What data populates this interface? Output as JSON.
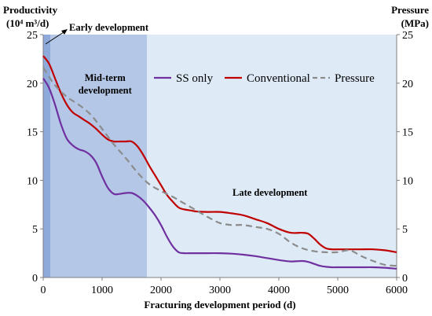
{
  "chart_data": {
    "type": "line",
    "ylabel_left": [
      "Productivity",
      "(10⁴ m³/d)"
    ],
    "ylabel_right": [
      "Pressure",
      "(MPa)"
    ],
    "xlabel": "Fracturing development period (d)",
    "xlim": [
      0,
      6000
    ],
    "ylim": [
      0,
      25
    ],
    "x_ticks": [
      0,
      1000,
      2000,
      3000,
      4000,
      5000,
      6000
    ],
    "y_ticks": [
      0,
      5,
      10,
      15,
      20,
      25
    ],
    "grid": false,
    "legend_position": "top-right",
    "colors": {
      "ss_only": "#7030a0",
      "conventional": "#c00000",
      "pressure": "#8c8c8c",
      "early_band": "#8eaadb",
      "mid_band": "#b4c7e7",
      "late_band": "#deebf7"
    },
    "phases": [
      {
        "label": "Early development",
        "start": 0,
        "end": 120
      },
      {
        "label": "Mid-term development",
        "start": 120,
        "end": 1760
      },
      {
        "label": "Late development",
        "start": 1760,
        "end": 6000
      }
    ],
    "series": [
      {
        "name": "SS only",
        "style": "solid",
        "x": [
          0,
          100,
          200,
          300,
          400,
          500,
          600,
          700,
          800,
          900,
          1000,
          1100,
          1200,
          1300,
          1400,
          1500,
          1600,
          1700,
          1800,
          1900,
          2000,
          2100,
          2200,
          2300,
          2400,
          2500,
          2600,
          2800,
          3000,
          3200,
          3400,
          3600,
          3800,
          4000,
          4200,
          4400,
          4500,
          4600,
          4700,
          4800,
          4900,
          5000,
          5200,
          5400,
          5600,
          5800,
          6000
        ],
        "y": [
          20.5,
          19.5,
          17.8,
          15.8,
          14.3,
          13.6,
          13.2,
          13.0,
          12.6,
          11.8,
          10.4,
          9.2,
          8.6,
          8.6,
          8.7,
          8.7,
          8.4,
          7.9,
          7.2,
          6.4,
          5.4,
          4.2,
          3.2,
          2.6,
          2.5,
          2.5,
          2.5,
          2.5,
          2.5,
          2.45,
          2.35,
          2.2,
          2.0,
          1.8,
          1.65,
          1.7,
          1.6,
          1.4,
          1.2,
          1.1,
          1.05,
          1.05,
          1.05,
          1.05,
          1.05,
          1.0,
          0.9
        ]
      },
      {
        "name": "Conventional",
        "style": "solid",
        "x": [
          0,
          100,
          200,
          300,
          400,
          500,
          600,
          700,
          800,
          900,
          1000,
          1100,
          1200,
          1300,
          1400,
          1500,
          1600,
          1700,
          1800,
          1900,
          2000,
          2100,
          2200,
          2300,
          2400,
          2500,
          2600,
          2800,
          3000,
          3200,
          3400,
          3600,
          3800,
          4000,
          4200,
          4400,
          4500,
          4600,
          4700,
          4800,
          4900,
          5000,
          5200,
          5400,
          5600,
          5800,
          6000
        ],
        "y": [
          22.8,
          22.0,
          20.5,
          19.0,
          17.8,
          17.0,
          16.6,
          16.2,
          15.8,
          15.3,
          14.7,
          14.2,
          14.0,
          14.0,
          14.0,
          14.0,
          13.5,
          12.6,
          11.5,
          10.5,
          9.5,
          8.5,
          7.8,
          7.2,
          7.0,
          6.9,
          6.8,
          6.75,
          6.75,
          6.6,
          6.4,
          6.0,
          5.6,
          5.0,
          4.6,
          4.6,
          4.5,
          4.0,
          3.4,
          3.0,
          2.9,
          2.9,
          2.9,
          2.9,
          2.9,
          2.8,
          2.6
        ]
      },
      {
        "name": "Pressure",
        "style": "dashed",
        "x": [
          0,
          200,
          400,
          600,
          800,
          1000,
          1200,
          1400,
          1600,
          1800,
          2000,
          2200,
          2400,
          2600,
          2800,
          3000,
          3200,
          3400,
          3600,
          3800,
          4000,
          4200,
          4400,
          4600,
          4800,
          5000,
          5200,
          5400,
          5600,
          5800,
          6000
        ],
        "y": [
          21.6,
          19.8,
          18.6,
          17.8,
          16.8,
          15.3,
          13.7,
          12.3,
          10.8,
          9.6,
          8.9,
          8.3,
          7.6,
          6.9,
          6.2,
          5.6,
          5.4,
          5.4,
          5.2,
          5.0,
          4.5,
          3.6,
          3.0,
          2.7,
          2.6,
          2.6,
          2.8,
          2.2,
          1.7,
          1.3,
          1.2
        ]
      }
    ]
  }
}
